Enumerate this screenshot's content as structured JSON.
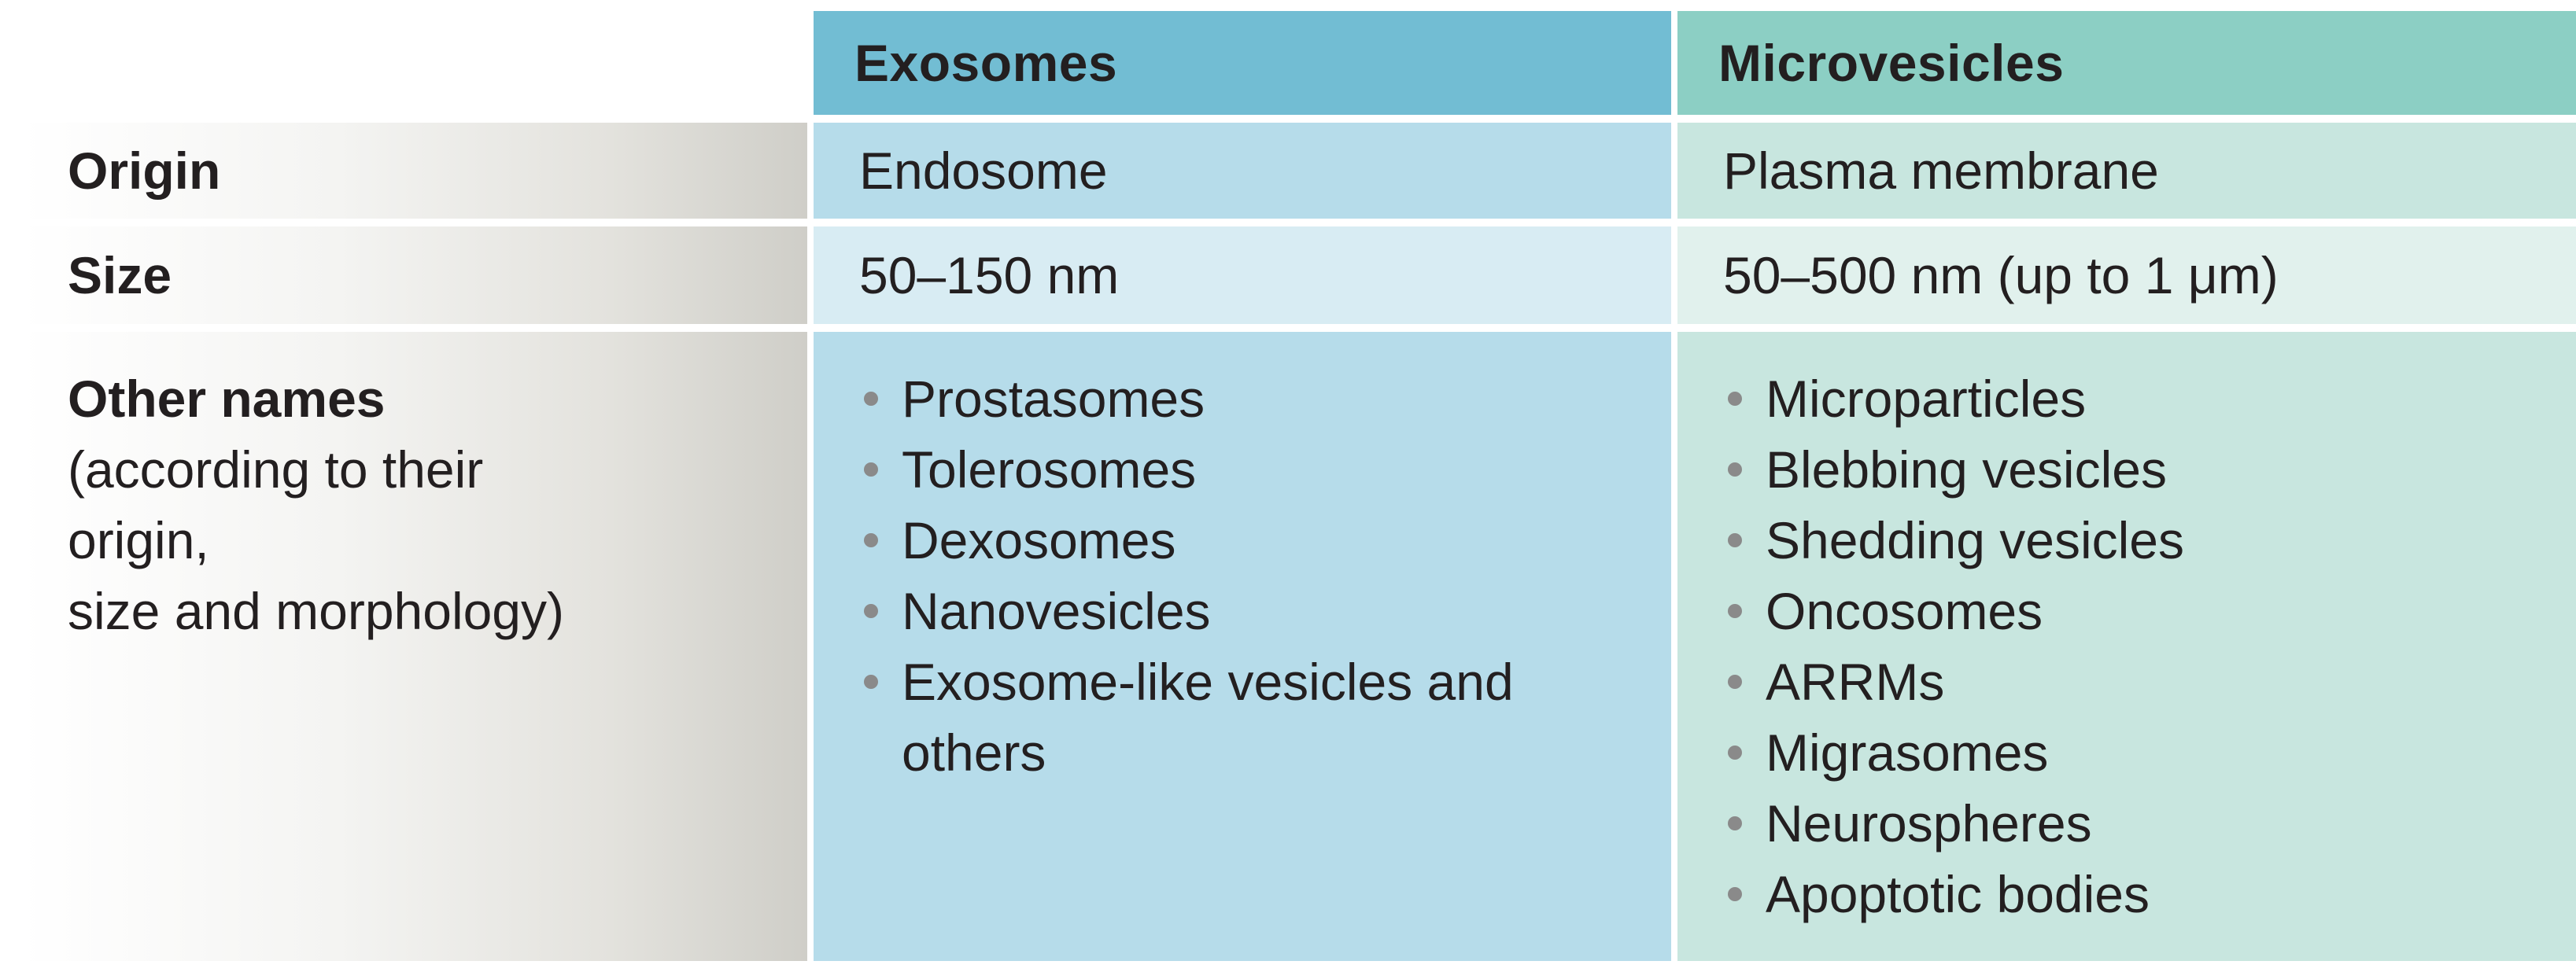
{
  "columns": {
    "exosomes": "Exosomes",
    "microvesicles": "Microvesicles"
  },
  "rows": {
    "origin": {
      "label": "Origin",
      "exosomes": "Endosome",
      "microvesicles": "Plasma membrane"
    },
    "size": {
      "label": "Size",
      "exosomes": "50–150 nm",
      "microvesicles": "50–500 nm (up to 1 μm)"
    },
    "other_names": {
      "label": "Other names",
      "sublabel_lines": [
        "(according to their",
        "origin,",
        "size and morphology)"
      ],
      "exosomes": [
        "Prostasomes",
        "Tolerosomes",
        "Dexosomes",
        "Nanovesicles",
        "Exosome-like vesicles and others"
      ],
      "microvesicles": [
        "Microparticles",
        "Blebbing vesicles",
        "Shedding vesicles",
        "Oncosomes",
        "ARRMs",
        "Migrasomes",
        "Neurospheres",
        "Apoptotic bodies"
      ]
    }
  },
  "colors": {
    "exosomes_header": "#72bdd3",
    "microvesicles_header": "#8ccfc4",
    "exosomes_body": "#b6dcea",
    "microvesicles_body": "#c8e6df",
    "bullet": "#8a8a8a"
  }
}
